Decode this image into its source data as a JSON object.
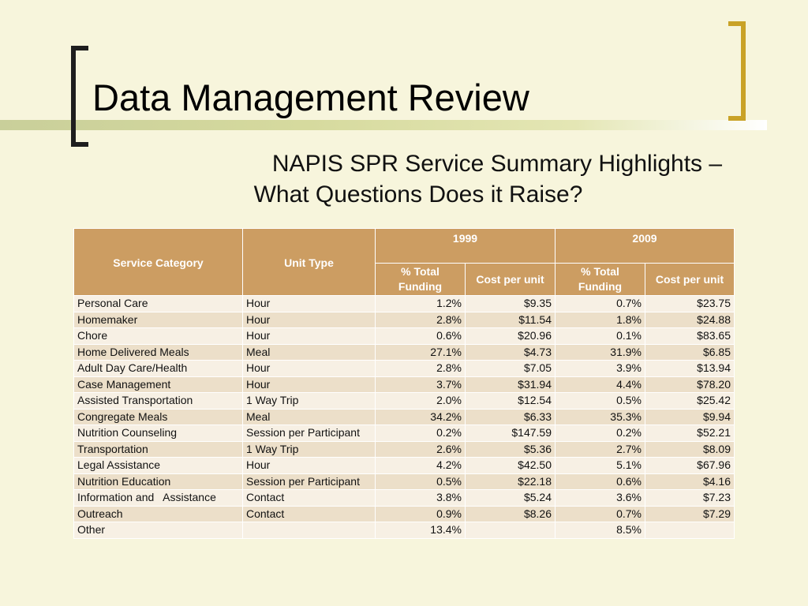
{
  "slide": {
    "title": "Data Management Review",
    "subtitle_line1": "NAPIS SPR Service Summary Highlights –",
    "subtitle_line2": "What Questions Does it Raise?"
  },
  "table": {
    "headers": {
      "service_category": "Service Category",
      "unit_type": "Unit Type",
      "year1": "1999",
      "year2": "2009",
      "pct_total_funding": "% Total Funding",
      "cost_per_unit": "Cost per unit"
    },
    "rows": [
      {
        "category": "Personal Care",
        "unit": "Hour",
        "pct1999": "1.2%",
        "cost1999": "$9.35",
        "pct2009": "0.7%",
        "cost2009": "$23.75"
      },
      {
        "category": "Homemaker",
        "unit": "Hour",
        "pct1999": "2.8%",
        "cost1999": "$11.54",
        "pct2009": "1.8%",
        "cost2009": "$24.88"
      },
      {
        "category": "Chore",
        "unit": "Hour",
        "pct1999": "0.6%",
        "cost1999": "$20.96",
        "pct2009": "0.1%",
        "cost2009": "$83.65"
      },
      {
        "category": "Home Delivered Meals",
        "unit": "Meal",
        "pct1999": "27.1%",
        "cost1999": "$4.73",
        "pct2009": "31.9%",
        "cost2009": "$6.85"
      },
      {
        "category": "Adult Day Care/Health",
        "unit": "Hour",
        "pct1999": "2.8%",
        "cost1999": "$7.05",
        "pct2009": "3.9%",
        "cost2009": "$13.94"
      },
      {
        "category": "Case Management",
        "unit": "Hour",
        "pct1999": "3.7%",
        "cost1999": "$31.94",
        "pct2009": "4.4%",
        "cost2009": "$78.20"
      },
      {
        "category": "Assisted Transportation",
        "unit": "1 Way Trip",
        "pct1999": "2.0%",
        "cost1999": "$12.54",
        "pct2009": "0.5%",
        "cost2009": "$25.42"
      },
      {
        "category": "Congregate Meals",
        "unit": "Meal",
        "pct1999": "34.2%",
        "cost1999": "$6.33",
        "pct2009": "35.3%",
        "cost2009": "$9.94"
      },
      {
        "category": "Nutrition Counseling",
        "unit": "Session per Participant",
        "pct1999": "0.2%",
        "cost1999": "$147.59",
        "pct2009": "0.2%",
        "cost2009": "$52.21"
      },
      {
        "category": "Transportation",
        "unit": "1 Way Trip",
        "pct1999": "2.6%",
        "cost1999": "$5.36",
        "pct2009": "2.7%",
        "cost2009": "$8.09"
      },
      {
        "category": "Legal Assistance",
        "unit": "Hour",
        "pct1999": "4.2%",
        "cost1999": "$42.50",
        "pct2009": "5.1%",
        "cost2009": "$67.96"
      },
      {
        "category": "Nutrition Education",
        "unit": "Session per Participant",
        "pct1999": "0.5%",
        "cost1999": "$22.18",
        "pct2009": "0.6%",
        "cost2009": "$4.16"
      },
      {
        "category": "Information and   Assistance",
        "unit": "Contact",
        "pct1999": "3.8%",
        "cost1999": "$5.24",
        "pct2009": "3.6%",
        "cost2009": "$7.23"
      },
      {
        "category": "Outreach",
        "unit": "Contact",
        "pct1999": "0.9%",
        "cost1999": "$8.26",
        "pct2009": "0.7%",
        "cost2009": "$7.29"
      },
      {
        "category": "Other",
        "unit": "",
        "pct1999": "13.4%",
        "cost1999": "",
        "pct2009": "8.5%",
        "cost2009": ""
      }
    ]
  }
}
